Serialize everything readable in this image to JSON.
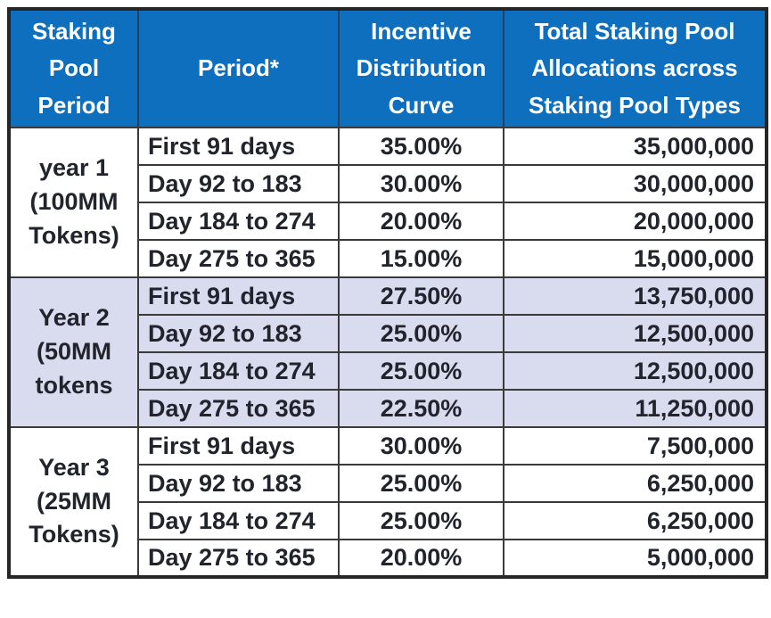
{
  "colors": {
    "header_bg": "#0e6fbf",
    "header_text": "#ffffff",
    "band_bg": "#d9dcee",
    "grid_border": "#3a3a3a",
    "body_text": "#21242c"
  },
  "chart_data": {
    "type": "table",
    "columns": [
      "Staking Pool Period",
      "Period*",
      "Incentive Distribution Curve",
      "Total Staking Pool Allocations across Staking Pool Types"
    ],
    "groups": [
      {
        "period_label": "year 1 (100MM Tokens)",
        "banded": false,
        "rows": [
          {
            "period": "First 91 days",
            "curve": "35.00%",
            "allocation": "35,000,000"
          },
          {
            "period": "Day 92 to 183",
            "curve": "30.00%",
            "allocation": "30,000,000"
          },
          {
            "period": "Day 184 to 274",
            "curve": "20.00%",
            "allocation": "20,000,000"
          },
          {
            "period": "Day 275 to 365",
            "curve": "15.00%",
            "allocation": "15,000,000"
          }
        ]
      },
      {
        "period_label": "Year 2 (50MM tokens",
        "banded": true,
        "rows": [
          {
            "period": "First 91 days",
            "curve": "27.50%",
            "allocation": "13,750,000"
          },
          {
            "period": "Day 92 to 183",
            "curve": "25.00%",
            "allocation": "12,500,000"
          },
          {
            "period": "Day 184 to 274",
            "curve": "25.00%",
            "allocation": "12,500,000"
          },
          {
            "period": "Day 275 to 365",
            "curve": "22.50%",
            "allocation": "11,250,000"
          }
        ]
      },
      {
        "period_label": "Year 3 (25MM Tokens)",
        "banded": false,
        "rows": [
          {
            "period": "First 91 days",
            "curve": "30.00%",
            "allocation": "7,500,000"
          },
          {
            "period": "Day 92 to 183",
            "curve": "25.00%",
            "allocation": "6,250,000"
          },
          {
            "period": "Day 184 to 274",
            "curve": "25.00%",
            "allocation": "6,250,000"
          },
          {
            "period": "Day 275 to 365",
            "curve": "20.00%",
            "allocation": "5,000,000"
          }
        ]
      }
    ]
  }
}
